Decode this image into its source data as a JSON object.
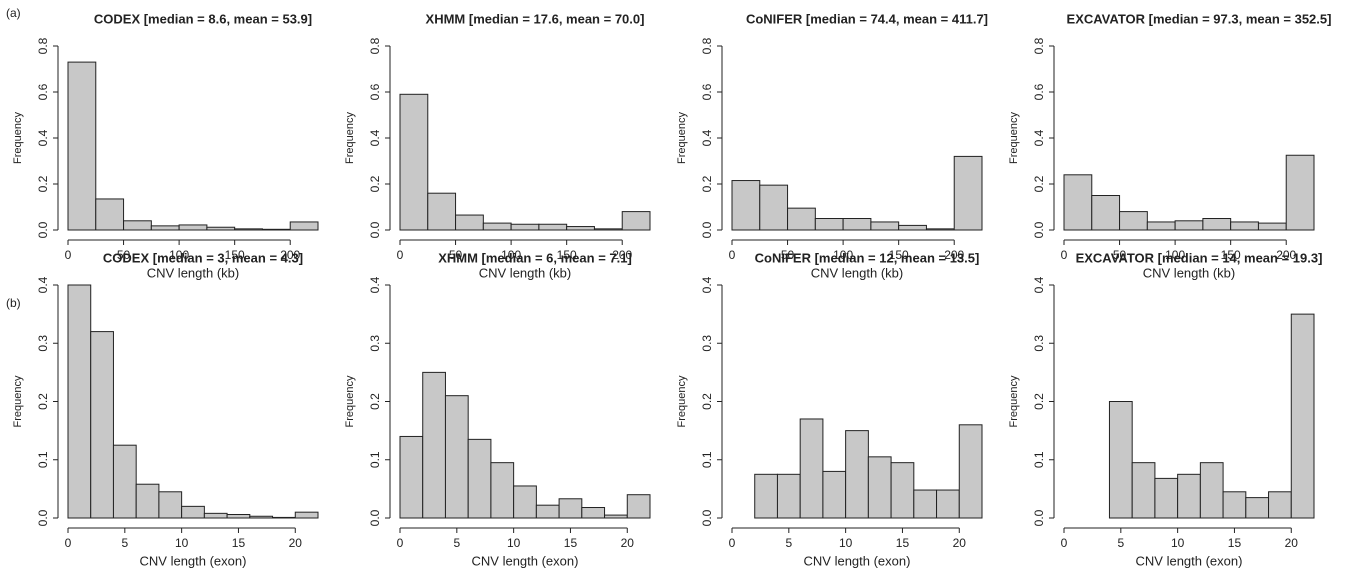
{
  "panel_labels": [
    "(a)",
    "(b)"
  ],
  "chart_data": [
    {
      "type": "histogram",
      "title": "CODEX [median = 8.6, mean = 53.9]",
      "xlabel": "CNV length (kb)",
      "ylabel": "Frequency",
      "color": "#c8c8c8",
      "bins": [
        0,
        25,
        50,
        75,
        100,
        125,
        150,
        175,
        200,
        225
      ],
      "values": [
        0.73,
        0.135,
        0.04,
        0.018,
        0.022,
        0.012,
        0.005,
        0.003,
        0.035
      ],
      "xlim": [
        0,
        225
      ],
      "ylim": [
        0,
        0.8
      ],
      "xticks": [
        0,
        50,
        100,
        150,
        200
      ],
      "yticks": [
        {
          "value": 0,
          "label": "0.0"
        },
        0.2,
        0.4,
        0.6,
        0.8
      ]
    },
    {
      "type": "histogram",
      "title": "XHMM [median = 17.6, mean = 70.0]",
      "xlabel": "CNV length (kb)",
      "ylabel": "Frequency",
      "color": "#c8c8c8",
      "bins": [
        0,
        25,
        50,
        75,
        100,
        125,
        150,
        175,
        200,
        225
      ],
      "values": [
        0.59,
        0.16,
        0.065,
        0.03,
        0.025,
        0.025,
        0.015,
        0.005,
        0.08
      ],
      "xlim": [
        0,
        225
      ],
      "ylim": [
        0,
        0.8
      ],
      "xticks": [
        0,
        50,
        100,
        150,
        200
      ],
      "yticks": [
        {
          "value": 0,
          "label": "0.0"
        },
        0.2,
        0.4,
        0.6,
        0.8
      ]
    },
    {
      "type": "histogram",
      "title": "CoNIFER [median = 74.4, mean = 411.7]",
      "xlabel": "CNV length (kb)",
      "ylabel": "Frequency",
      "color": "#c8c8c8",
      "bins": [
        0,
        25,
        50,
        75,
        100,
        125,
        150,
        175,
        200,
        225
      ],
      "values": [
        0.215,
        0.195,
        0.095,
        0.05,
        0.05,
        0.035,
        0.02,
        0.005,
        0.32
      ],
      "xlim": [
        0,
        225
      ],
      "ylim": [
        0,
        0.8
      ],
      "xticks": [
        0,
        50,
        100,
        150,
        200
      ],
      "yticks": [
        {
          "value": 0,
          "label": "0.0"
        },
        0.2,
        0.4,
        0.6,
        0.8
      ]
    },
    {
      "type": "histogram",
      "title": "EXCAVATOR [median = 97.3, mean = 352.5]",
      "xlabel": "CNV length (kb)",
      "ylabel": "Frequency",
      "color": "#c8c8c8",
      "bins": [
        0,
        25,
        50,
        75,
        100,
        125,
        150,
        175,
        200,
        225
      ],
      "values": [
        0.24,
        0.15,
        0.08,
        0.035,
        0.04,
        0.05,
        0.035,
        0.03,
        0.325
      ],
      "xlim": [
        0,
        225
      ],
      "ylim": [
        0,
        0.8
      ],
      "xticks": [
        0,
        50,
        100,
        150,
        200
      ],
      "yticks": [
        {
          "value": 0,
          "label": "0.0"
        },
        0.2,
        0.4,
        0.6,
        0.8
      ]
    },
    {
      "type": "histogram",
      "title": "CODEX [median = 3, mean = 4.3]",
      "xlabel": "CNV length (exon)",
      "ylabel": "Frequency",
      "color": "#c8c8c8",
      "bins": [
        0,
        2,
        4,
        6,
        8,
        10,
        12,
        14,
        16,
        18,
        20,
        22
      ],
      "values": [
        0.4,
        0.32,
        0.125,
        0.058,
        0.045,
        0.02,
        0.008,
        0.006,
        0.003,
        0.001,
        0.01
      ],
      "xlim": [
        0,
        22
      ],
      "ylim": [
        0,
        0.4
      ],
      "xticks": [
        0,
        5,
        10,
        15,
        20
      ],
      "yticks": [
        {
          "value": 0,
          "label": "0.0"
        },
        0.1,
        0.2,
        0.3,
        0.4
      ]
    },
    {
      "type": "histogram",
      "title": "XHMM [median = 6, mean = 7.1]",
      "xlabel": "CNV length (exon)",
      "ylabel": "Frequency",
      "color": "#c8c8c8",
      "bins": [
        0,
        2,
        4,
        6,
        8,
        10,
        12,
        14,
        16,
        18,
        20,
        22
      ],
      "values": [
        0.14,
        0.25,
        0.21,
        0.135,
        0.095,
        0.055,
        0.022,
        0.033,
        0.018,
        0.005,
        0.04
      ],
      "xlim": [
        0,
        22
      ],
      "ylim": [
        0,
        0.4
      ],
      "xticks": [
        0,
        5,
        10,
        15,
        20
      ],
      "yticks": [
        {
          "value": 0,
          "label": "0.0"
        },
        0.1,
        0.2,
        0.3,
        0.4
      ]
    },
    {
      "type": "histogram",
      "title": "CoNIFER [median = 12, mean = 13.5]",
      "xlabel": "CNV length (exon)",
      "ylabel": "Frequency",
      "color": "#c8c8c8",
      "bins": [
        0,
        2,
        4,
        6,
        8,
        10,
        12,
        14,
        16,
        18,
        20,
        22
      ],
      "values": [
        0,
        0.075,
        0.075,
        0.17,
        0.08,
        0.15,
        0.105,
        0.095,
        0.048,
        0.048,
        0.16
      ],
      "xlim": [
        0,
        22
      ],
      "ylim": [
        0,
        0.4
      ],
      "xticks": [
        0,
        5,
        10,
        15,
        20
      ],
      "yticks": [
        {
          "value": 0,
          "label": "0.0"
        },
        0.1,
        0.2,
        0.3,
        0.4
      ]
    },
    {
      "type": "histogram",
      "title": "EXCAVATOR [median = 14, mean = 19.3]",
      "xlabel": "CNV length (exon)",
      "ylabel": "Frequency",
      "color": "#c8c8c8",
      "bins": [
        0,
        2,
        4,
        6,
        8,
        10,
        12,
        14,
        16,
        18,
        20,
        22
      ],
      "values": [
        0,
        0,
        0.2,
        0.095,
        0.068,
        0.075,
        0.095,
        0.045,
        0.035,
        0.045,
        0.35
      ],
      "xlim": [
        0,
        22
      ],
      "ylim": [
        0,
        0.4
      ],
      "xticks": [
        0,
        5,
        10,
        15,
        20
      ],
      "yticks": [
        {
          "value": 0,
          "label": "0.0"
        },
        0.1,
        0.2,
        0.3,
        0.4
      ]
    }
  ]
}
